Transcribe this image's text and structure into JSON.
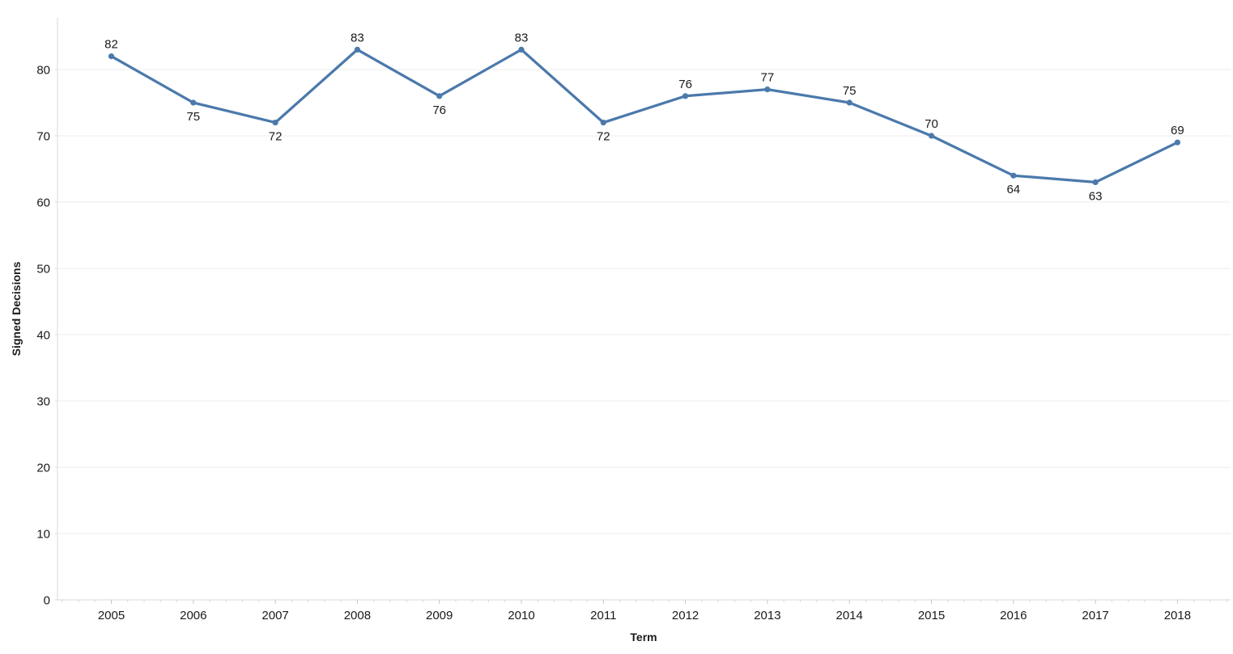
{
  "chart_data": {
    "type": "line",
    "title": "",
    "categories": [
      "2005",
      "2006",
      "2007",
      "2008",
      "2009",
      "2010",
      "2011",
      "2012",
      "2013",
      "2014",
      "2015",
      "2016",
      "2017",
      "2018"
    ],
    "series": [
      {
        "name": "Signed Decisions",
        "values": [
          82,
          75,
          72,
          83,
          76,
          83,
          72,
          76,
          77,
          75,
          70,
          64,
          63,
          69
        ],
        "color": "#4b79ab",
        "marker": "circle"
      }
    ],
    "data_labels": {
      "show": true,
      "positions": [
        "above",
        "below",
        "below",
        "above",
        "below",
        "above",
        "below",
        "above",
        "above",
        "above",
        "above",
        "below",
        "below",
        "above"
      ]
    },
    "xlabel": "Term",
    "ylabel": "Signed Decisions",
    "ylim": [
      0,
      88
    ],
    "yticks": [
      0,
      10,
      20,
      30,
      40,
      50,
      60,
      70,
      80
    ],
    "grid": "horizontal-only",
    "legend": "none",
    "colors": {
      "background": "#ffffff",
      "gridline": "#ececec",
      "axis_line": "#d9d9d9",
      "tick_minor": "#d9d9d9",
      "tick_major": "#c6c6c6",
      "text": "#1a1a1a"
    }
  }
}
